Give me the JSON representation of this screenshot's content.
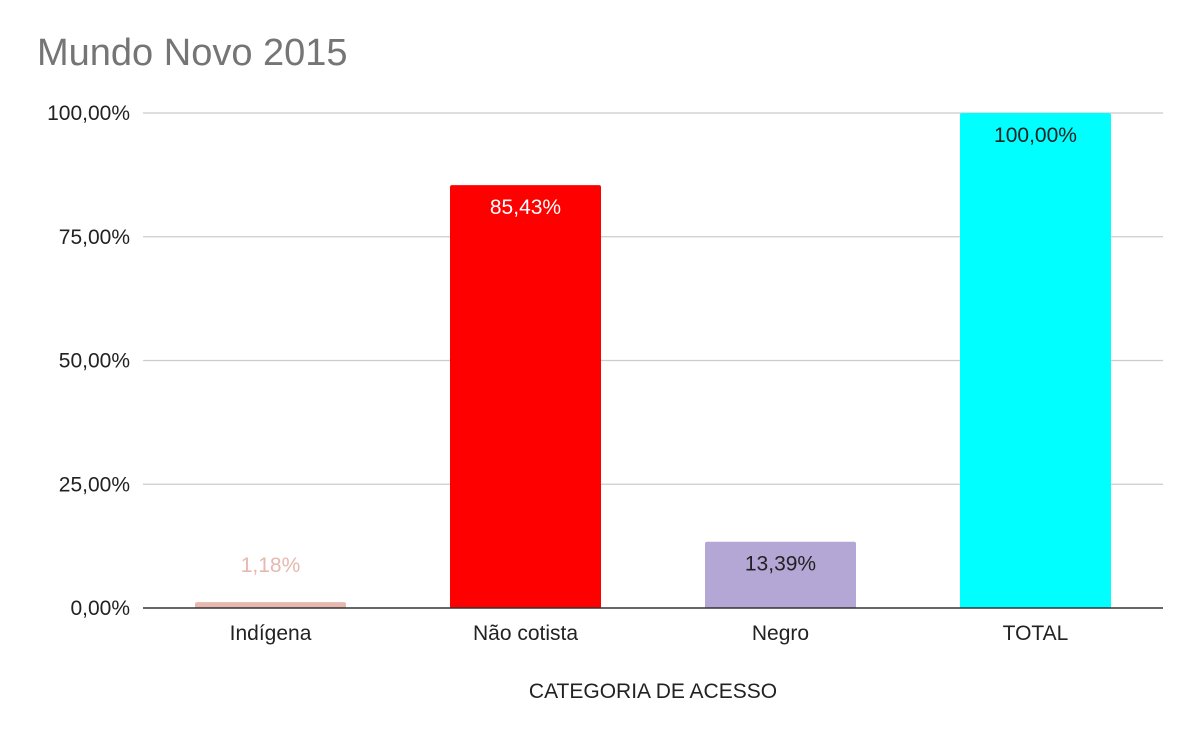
{
  "chart_data": {
    "type": "bar",
    "title": "Mundo Novo 2015",
    "xlabel": "CATEGORIA DE ACESSO",
    "ylabel": "",
    "ylim": [
      0,
      100
    ],
    "yticks": [
      0,
      25,
      50,
      75,
      100
    ],
    "ytick_labels": [
      "0,00%",
      "25,00%",
      "50,00%",
      "75,00%",
      "100,00%"
    ],
    "categories": [
      "Indígena",
      "Não cotista",
      "Negro",
      "TOTAL"
    ],
    "values": [
      1.18,
      85.43,
      13.39,
      100.0
    ],
    "data_labels": [
      "1,18%",
      "85,43%",
      "13,39%",
      "100,00%"
    ],
    "colors": [
      "#e6b8af",
      "#ff0000",
      "#b4a7d6",
      "#00ffff"
    ],
    "label_colors": [
      "#e6b8af",
      "#ffffff",
      "#222222",
      "#222222"
    ],
    "grid": true,
    "legend": "none"
  }
}
